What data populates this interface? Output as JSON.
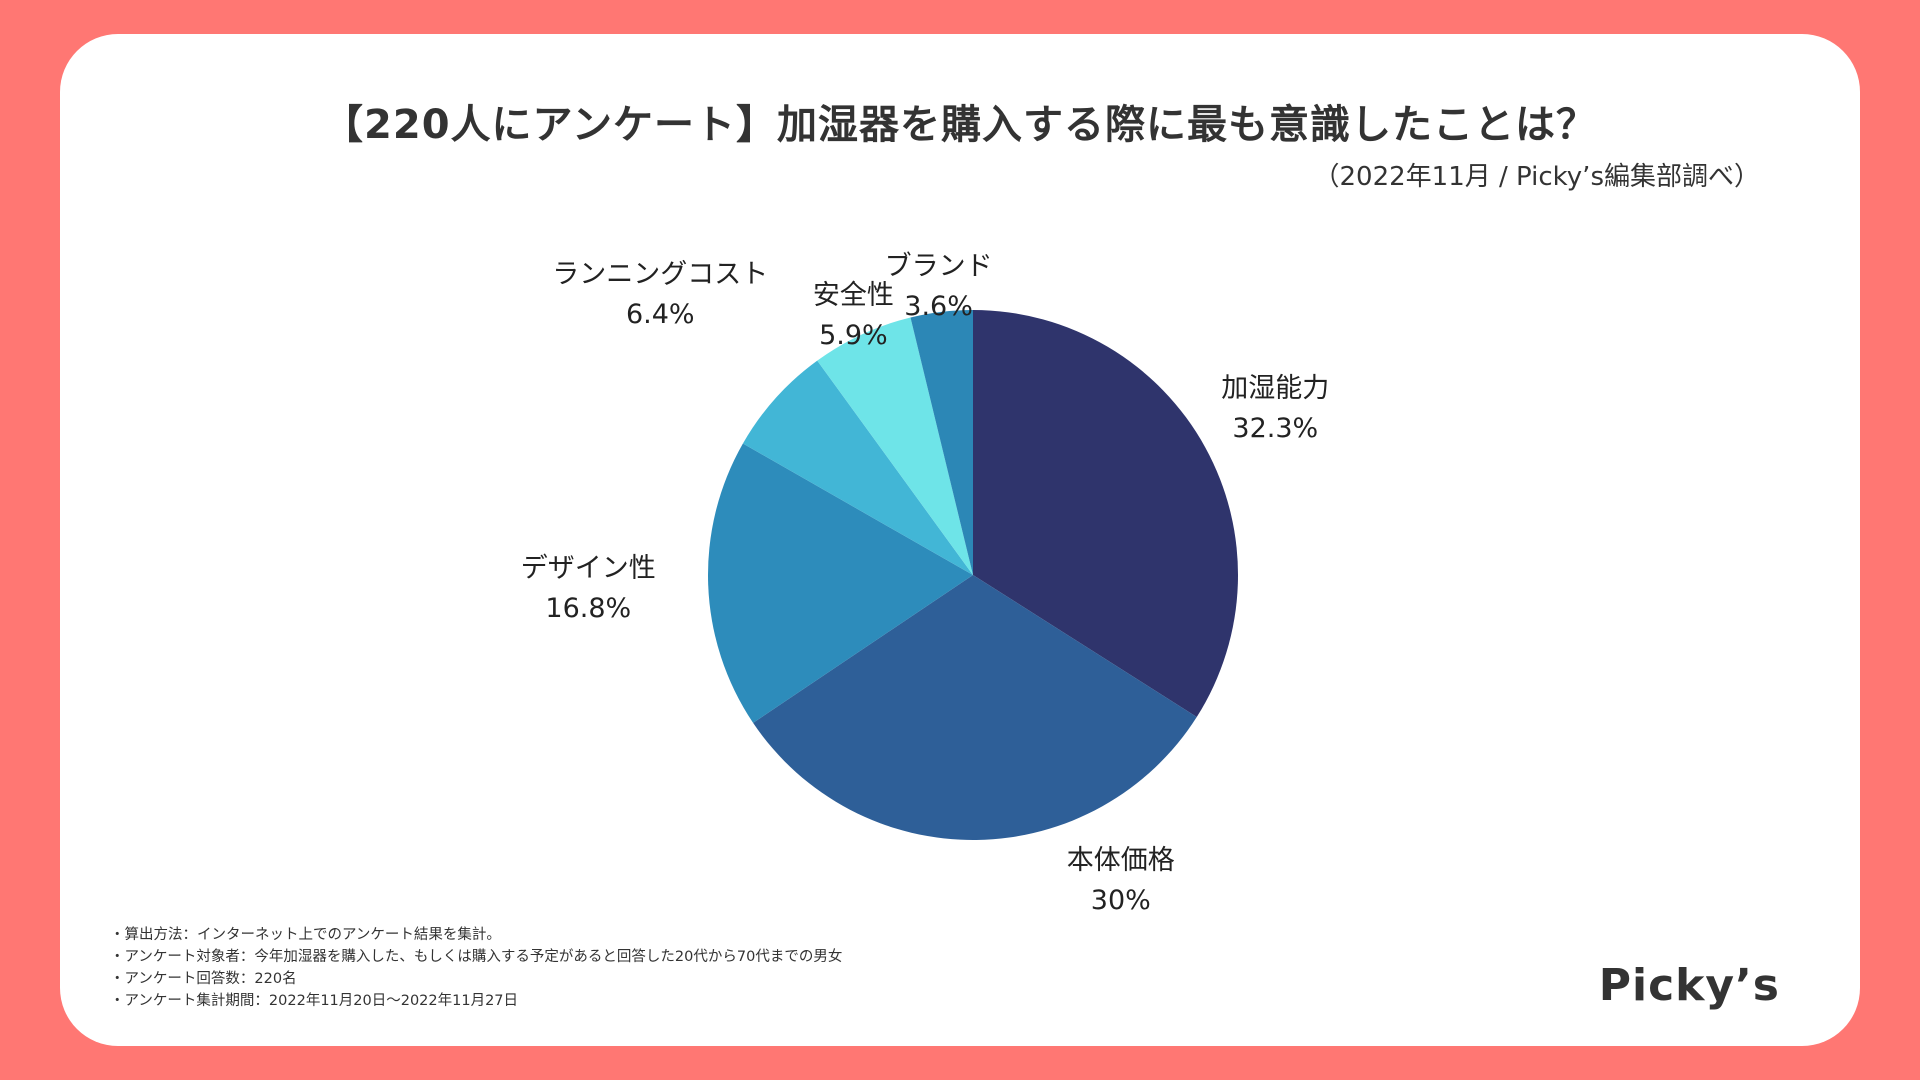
{
  "title": "【220人にアンケート】加湿器を購入する際に最も意識したことは？",
  "source": "（2022年11月 / Picky’s編集部調べ）",
  "chart_data": {
    "type": "pie",
    "title": "【220人にアンケート】加湿器を購入する際に最も意識したことは？",
    "categories": [
      "加湿能力",
      "本体価格",
      "デザイン性",
      "ランニングコスト",
      "安全性",
      "ブランド"
    ],
    "values": [
      32.3,
      30,
      16.8,
      6.4,
      5.9,
      3.6
    ],
    "value_labels": [
      "32.3%",
      "30%",
      "16.8%",
      "6.4%",
      "5.9%",
      "3.6%"
    ],
    "colors": [
      "#2f346c",
      "#2e5f98",
      "#2d8cbb",
      "#42b6d6",
      "#6ee4e8",
      "#2c87b6"
    ],
    "start": "top, clockwise",
    "legend": "none (labels beside slices)"
  },
  "notes": [
    "・算出方法：インターネット上でのアンケート結果を集計。",
    "・アンケート対象者：今年加湿器を購入した、もしくは購入する予定があると回答した20代から70代までの男女",
    "・アンケート回答数：220名",
    "・アンケート集計期間：2022年11月20日〜2022年11月27日"
  ],
  "logo": "Picky’s",
  "colors": {
    "background": "#ff7773",
    "card": "#ffffff"
  }
}
